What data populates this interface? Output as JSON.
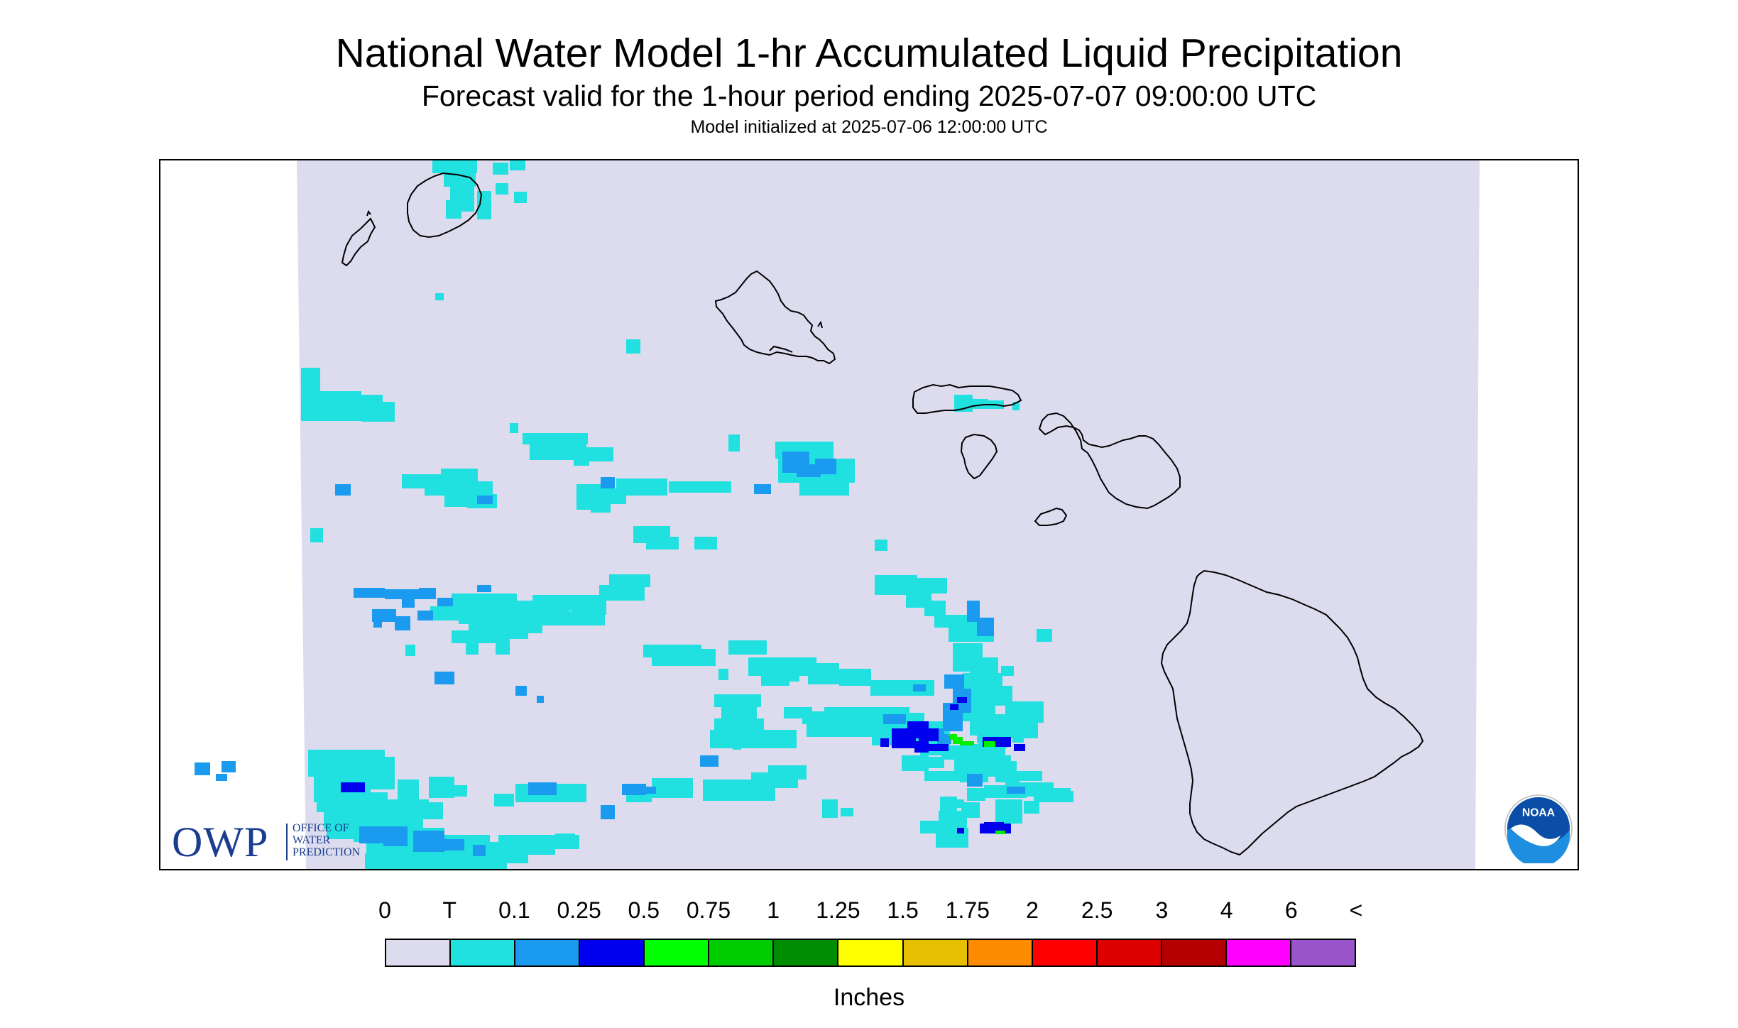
{
  "title": "National Water Model 1-hr Accumulated Liquid Precipitation",
  "subtitle": "Forecast valid for the 1-hour period ending 2025-07-07 09:00:00 UTC",
  "init_line": "Model initialized at 2025-07-06 12:00:00 UTC",
  "colors": {
    "background_field": "#dcdcee",
    "coastline": "#000000",
    "owp_blue": "#1a3d8f",
    "noaa_blue": "#0a4ea8"
  },
  "logos": {
    "owp_letters": "OWP",
    "owp_line1": "OFFICE OF",
    "owp_line2": "WATER",
    "owp_line3": "PREDICTION",
    "noaa_text": "NOAA"
  },
  "legend": {
    "units": "Inches",
    "ticks": [
      "0",
      "T",
      "0.1",
      "0.25",
      "0.5",
      "0.75",
      "1",
      "1.25",
      "1.5",
      "1.75",
      "2",
      "2.5",
      "3",
      "4",
      "6",
      "<"
    ],
    "colors": [
      "#dcdcee",
      "#20e0e0",
      "#1a9bef",
      "#0000ee",
      "#00ff00",
      "#00cc00",
      "#008c00",
      "#ffff00",
      "#e6bf00",
      "#ff8c00",
      "#ff0000",
      "#dc0000",
      "#b40000",
      "#ff00ff",
      "#9955cc"
    ]
  }
}
